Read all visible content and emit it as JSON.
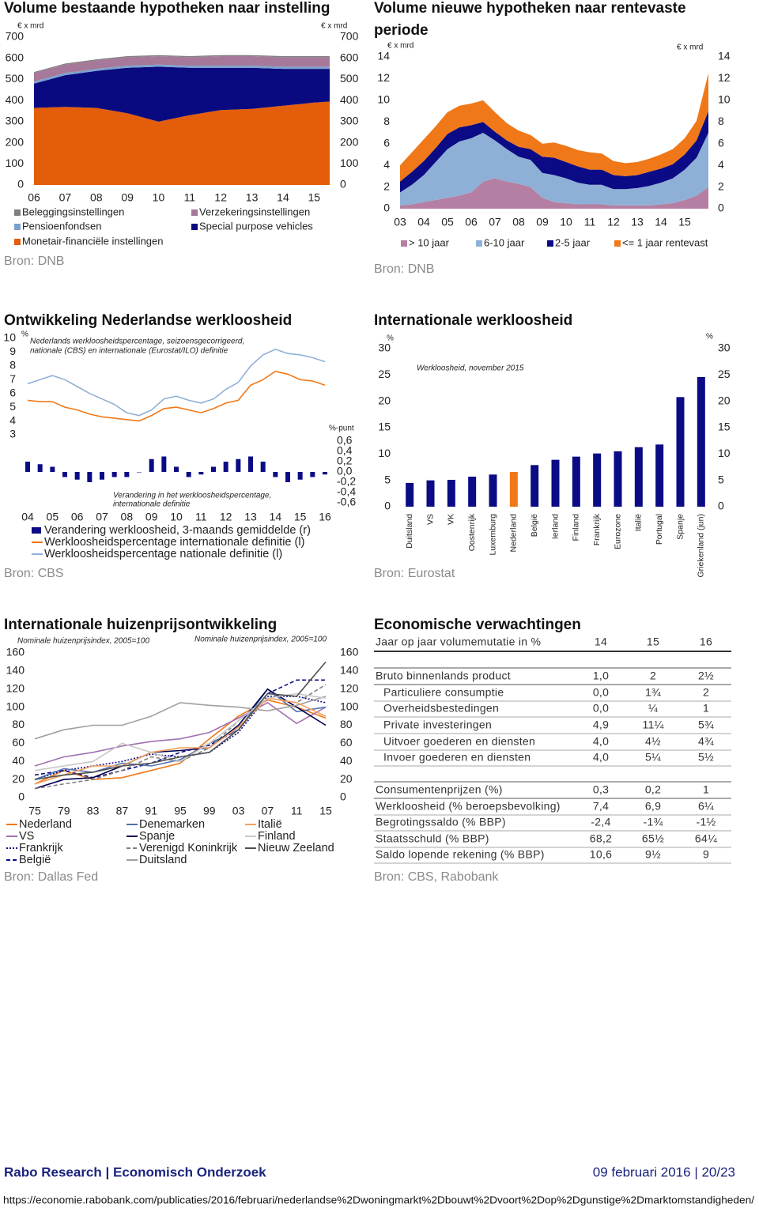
{
  "chart_data": [
    {
      "type": "area",
      "title": "Volume bestaande hypotheken naar instelling",
      "source": "Bron: DNB",
      "ylabel": "€ x mrd",
      "y2label": "€ x mrd",
      "x": [
        2006,
        2007,
        2008,
        2009,
        2010,
        2011,
        2012,
        2013,
        2014,
        2015,
        2015.5
      ],
      "xlim": [
        2006,
        2015.5
      ],
      "xticks": [
        {
          "value": 2006,
          "label": "06"
        },
        {
          "value": 2007,
          "label": "07"
        },
        {
          "value": 2008,
          "label": "08"
        },
        {
          "value": 2009,
          "label": "09"
        },
        {
          "value": 2010,
          "label": "10"
        },
        {
          "value": 2011,
          "label": "11"
        },
        {
          "value": 2012,
          "label": "12"
        },
        {
          "value": 2013,
          "label": "13"
        },
        {
          "value": 2014,
          "label": "14"
        },
        {
          "value": 2015,
          "label": "15"
        }
      ],
      "ylim": [
        0,
        700
      ],
      "yticks": [
        0,
        100,
        200,
        300,
        400,
        500,
        600,
        700
      ],
      "y2lim": [
        0,
        700
      ],
      "y2ticks": [
        0,
        100,
        200,
        300,
        400,
        500,
        600,
        700
      ],
      "series": [
        {
          "name": "Monetair-financiële instellingen",
          "color": "#e35d0b",
          "values": [
            365,
            370,
            365,
            340,
            300,
            330,
            355,
            360,
            375,
            390,
            395
          ]
        },
        {
          "name": "Special purpose vehicles",
          "color": "#0a0a80",
          "values": [
            115,
            150,
            175,
            215,
            260,
            225,
            200,
            195,
            175,
            160,
            155
          ]
        },
        {
          "name": "Pensioenfondsen",
          "color": "#7ba2cf",
          "values": [
            10,
            10,
            10,
            10,
            10,
            10,
            10,
            10,
            10,
            10,
            10
          ]
        },
        {
          "name": "Verzekeringsinstellingen",
          "color": "#a6789a",
          "values": [
            40,
            40,
            40,
            40,
            40,
            40,
            45,
            45,
            45,
            45,
            45
          ]
        },
        {
          "name": "Beleggingsinstellingen",
          "color": "#808080",
          "values": [
            5,
            5,
            5,
            5,
            5,
            5,
            5,
            5,
            5,
            5,
            5
          ]
        }
      ]
    },
    {
      "type": "area",
      "title": "Volume nieuwe hypotheken naar rentevaste periode",
      "source": "Bron: DNB",
      "ylabel": "€ x mrd",
      "y2label": "€ x mrd",
      "x": [
        2003,
        2003.5,
        2004,
        2004.5,
        2005,
        2005.5,
        2006,
        2006.5,
        2007,
        2007.5,
        2008,
        2008.5,
        2009,
        2009.5,
        2010,
        2010.5,
        2011,
        2011.5,
        2012,
        2012.5,
        2013,
        2013.5,
        2014,
        2014.5,
        2015,
        2015.5,
        2016
      ],
      "xlim": [
        2002.9,
        2016
      ],
      "xticks": [
        {
          "value": 2003,
          "label": "03"
        },
        {
          "value": 2004,
          "label": "04"
        },
        {
          "value": 2005,
          "label": "05"
        },
        {
          "value": 2006,
          "label": "06"
        },
        {
          "value": 2007,
          "label": "07"
        },
        {
          "value": 2008,
          "label": "08"
        },
        {
          "value": 2009,
          "label": "09"
        },
        {
          "value": 2010,
          "label": "10"
        },
        {
          "value": 2011,
          "label": "11"
        },
        {
          "value": 2012,
          "label": "12"
        },
        {
          "value": 2013,
          "label": "13"
        },
        {
          "value": 2014,
          "label": "14"
        },
        {
          "value": 2015,
          "label": "15"
        }
      ],
      "ylim": [
        0,
        14
      ],
      "yticks": [
        0,
        2,
        4,
        6,
        8,
        10,
        12,
        14
      ],
      "y2lim": [
        0,
        14
      ],
      "y2ticks": [
        0,
        2,
        4,
        6,
        8,
        10,
        12,
        14
      ],
      "series": [
        {
          "name": "> 10 jaar",
          "color": "#b57fa3",
          "values": [
            0.3,
            0.4,
            0.6,
            0.8,
            1.0,
            1.2,
            1.5,
            2.5,
            2.8,
            2.5,
            2.3,
            2.0,
            1.0,
            0.6,
            0.5,
            0.4,
            0.4,
            0.4,
            0.3,
            0.3,
            0.3,
            0.3,
            0.4,
            0.5,
            0.8,
            1.2,
            2.0
          ]
        },
        {
          "name": "6-10 jaar",
          "color": "#8fb0d6",
          "values": [
            1.2,
            1.8,
            2.5,
            3.5,
            4.5,
            5.0,
            5.0,
            4.5,
            3.5,
            3.0,
            2.5,
            2.5,
            2.3,
            2.5,
            2.3,
            2.0,
            1.8,
            1.8,
            1.5,
            1.5,
            1.6,
            1.8,
            2.0,
            2.3,
            2.8,
            3.5,
            5.0
          ]
        },
        {
          "name": "2-5 jaar",
          "color": "#0b0b85",
          "values": [
            1.0,
            1.2,
            1.3,
            1.3,
            1.4,
            1.3,
            1.2,
            1.0,
            0.8,
            0.8,
            0.9,
            1.0,
            1.5,
            1.6,
            1.5,
            1.5,
            1.4,
            1.4,
            1.3,
            1.2,
            1.2,
            1.3,
            1.3,
            1.3,
            1.4,
            1.6,
            2.0
          ]
        },
        {
          "name": "<= 1 jaar rentevast",
          "color": "#f07818",
          "values": [
            1.5,
            1.8,
            2.0,
            2.0,
            2.0,
            2.0,
            2.0,
            2.0,
            1.8,
            1.6,
            1.5,
            1.3,
            1.2,
            1.4,
            1.5,
            1.5,
            1.6,
            1.5,
            1.3,
            1.2,
            1.2,
            1.2,
            1.3,
            1.4,
            1.5,
            1.8,
            3.5
          ]
        }
      ]
    },
    {
      "type": "line",
      "title": "Ontwikkeling Nederlandse werkloosheid",
      "source": "Bron: CBS",
      "ylabel": "%",
      "y2label": "%-punt",
      "annotations": [
        "Nederlands werkloosheidspercentage, seizoensgecorrigeerd,",
        "nationale (CBS) en internationale (Eurostat/ILO) definitie",
        "Verandering in het werkloosheidspercentage,",
        "internationale definitie"
      ],
      "x": [
        2004,
        2004.5,
        2005,
        2005.5,
        2006,
        2006.5,
        2007,
        2007.5,
        2008,
        2008.5,
        2009,
        2009.5,
        2010,
        2010.5,
        2011,
        2011.5,
        2012,
        2012.5,
        2013,
        2013.5,
        2014,
        2014.5,
        2015,
        2015.5,
        2016
      ],
      "xlim": [
        2004,
        2016
      ],
      "xticks": [
        {
          "value": 2004,
          "label": "04"
        },
        {
          "value": 2005,
          "label": "05"
        },
        {
          "value": 2006,
          "label": "06"
        },
        {
          "value": 2007,
          "label": "07"
        },
        {
          "value": 2008,
          "label": "08"
        },
        {
          "value": 2009,
          "label": "09"
        },
        {
          "value": 2010,
          "label": "10"
        },
        {
          "value": 2011,
          "label": "11"
        },
        {
          "value": 2012,
          "label": "12"
        },
        {
          "value": 2013,
          "label": "13"
        },
        {
          "value": 2014,
          "label": "14"
        },
        {
          "value": 2015,
          "label": "15"
        },
        {
          "value": 2016,
          "label": "16"
        }
      ],
      "ylim": [
        3,
        10
      ],
      "yticks": [
        3,
        4,
        5,
        6,
        7,
        8,
        9,
        10
      ],
      "y2lim": [
        -0.6,
        0.6
      ],
      "y2ticks": [
        {
          "value": 0.6,
          "label": "0,6"
        },
        {
          "value": 0.4,
          "label": "0,4"
        },
        {
          "value": 0.2,
          "label": "0,2"
        },
        {
          "value": 0,
          "label": "0,0"
        },
        {
          "value": -0.2,
          "label": "-0,2"
        },
        {
          "value": -0.4,
          "label": "-0,4"
        },
        {
          "value": -0.6,
          "label": "-0,6"
        }
      ],
      "series": [
        {
          "name": "Verandering werkloosheid, 3-maands gemiddelde (r)",
          "type": "bar",
          "axis": "y2",
          "color": "#0b0b85",
          "values": [
            0.2,
            0.15,
            0.1,
            -0.1,
            -0.15,
            -0.2,
            -0.15,
            -0.1,
            -0.1,
            0.0,
            0.25,
            0.3,
            0.1,
            -0.1,
            -0.05,
            0.1,
            0.2,
            0.25,
            0.3,
            0.2,
            -0.1,
            -0.2,
            -0.15,
            -0.1,
            -0.05
          ]
        },
        {
          "name": "Werkloosheidspercentage internationale definitie (l)",
          "color": "#f07818",
          "values": [
            5.5,
            5.4,
            5.4,
            5.0,
            4.8,
            4.5,
            4.3,
            4.2,
            4.1,
            4.0,
            4.4,
            4.9,
            5.0,
            4.8,
            4.6,
            4.9,
            5.3,
            5.5,
            6.6,
            7.0,
            7.6,
            7.4,
            7.0,
            6.9,
            6.6
          ]
        },
        {
          "name": "Werkloosheidspercentage nationale definitie (l)",
          "color": "#8fb0d6",
          "values": [
            6.7,
            7.0,
            7.3,
            7.0,
            6.5,
            6.0,
            5.6,
            5.2,
            4.6,
            4.4,
            4.8,
            5.6,
            5.8,
            5.5,
            5.3,
            5.6,
            6.3,
            6.8,
            8.0,
            8.8,
            9.2,
            8.9,
            8.8,
            8.6,
            8.3
          ]
        }
      ]
    },
    {
      "type": "bar",
      "title": "Internationale werkloosheid",
      "source": "Bron: Eurostat",
      "ylabel": "%",
      "y2label": "%",
      "annotations": [
        "Werkloosheid, november 2015"
      ],
      "categories": [
        "Duitsland",
        "VS",
        "VK",
        "Oostenrijk",
        "Luxemburg",
        "Nederland",
        "België",
        "Ierland",
        "Finland",
        "Frankrijk",
        "Eurozone",
        "Italië",
        "Portugal",
        "Spanje",
        "Griekenland (jun)"
      ],
      "values": [
        4.5,
        5.0,
        5.1,
        5.7,
        6.1,
        6.6,
        7.9,
        8.9,
        9.5,
        10.1,
        10.5,
        11.3,
        11.8,
        20.8,
        24.6
      ],
      "colors": [
        "#0b0b85",
        "#0b0b85",
        "#0b0b85",
        "#0b0b85",
        "#0b0b85",
        "#f07818",
        "#0b0b85",
        "#0b0b85",
        "#0b0b85",
        "#0b0b85",
        "#0b0b85",
        "#0b0b85",
        "#0b0b85",
        "#0b0b85",
        "#0b0b85"
      ],
      "ylim": [
        0,
        30
      ],
      "yticks": [
        0,
        5,
        10,
        15,
        20,
        25,
        30
      ],
      "y2lim": [
        0,
        30
      ],
      "y2ticks": [
        0,
        5,
        10,
        15,
        20,
        25,
        30
      ]
    },
    {
      "type": "line",
      "title": "Internationale huizenprijsontwikkeling",
      "source": "Bron: Dallas Fed",
      "annotations": [
        "Nominale huizenprijsindex, 2005=100",
        "Nominale huizenprijsindex, 2005=100"
      ],
      "x": [
        1975,
        1979,
        1983,
        1987,
        1991,
        1995,
        1999,
        2003,
        2007,
        2011,
        2015
      ],
      "xlim": [
        1975,
        2015
      ],
      "xticks": [
        {
          "value": 1975,
          "label": "75"
        },
        {
          "value": 1979,
          "label": "79"
        },
        {
          "value": 1983,
          "label": "83"
        },
        {
          "value": 1987,
          "label": "87"
        },
        {
          "value": 1991,
          "label": "91"
        },
        {
          "value": 1995,
          "label": "95"
        },
        {
          "value": 1999,
          "label": "99"
        },
        {
          "value": 2003,
          "label": "03"
        },
        {
          "value": 2007,
          "label": "07"
        },
        {
          "value": 2011,
          "label": "11"
        },
        {
          "value": 2015,
          "label": "15"
        }
      ],
      "ylim": [
        0,
        160
      ],
      "yticks": [
        0,
        20,
        40,
        60,
        80,
        100,
        120,
        140,
        160
      ],
      "y2lim": [
        0,
        160
      ],
      "y2ticks": [
        0,
        20,
        40,
        60,
        80,
        100,
        120,
        140,
        160
      ],
      "series": [
        {
          "name": "Nederland",
          "color": "#f07818",
          "dash": "solid",
          "values": [
            15,
            30,
            20,
            22,
            30,
            38,
            65,
            90,
            108,
            100,
            88
          ]
        },
        {
          "name": "VS",
          "color": "#a070b0",
          "dash": "solid",
          "values": [
            35,
            45,
            50,
            57,
            62,
            65,
            72,
            88,
            105,
            82,
            100
          ]
        },
        {
          "name": "Frankrijk",
          "color": "#0b0b85",
          "dash": "dotted",
          "values": [
            20,
            30,
            35,
            40,
            48,
            45,
            50,
            72,
            112,
            112,
            105
          ]
        },
        {
          "name": "België",
          "color": "#0b0b85",
          "dash": "dashed",
          "values": [
            25,
            30,
            22,
            30,
            38,
            50,
            58,
            75,
            115,
            130,
            130
          ]
        },
        {
          "name": "Denemarken",
          "color": "#5070b0",
          "dash": "solid",
          "values": [
            20,
            32,
            28,
            38,
            35,
            42,
            60,
            75,
            120,
            95,
            100
          ]
        },
        {
          "name": "Spanje",
          "color": "#000050",
          "dash": "solid",
          "values": [
            10,
            20,
            22,
            35,
            50,
            52,
            55,
            80,
            120,
            100,
            80
          ]
        },
        {
          "name": "Verenigd Koninkrijk",
          "color": "#808080",
          "dash": "dashed",
          "values": [
            10,
            15,
            20,
            30,
            45,
            40,
            55,
            85,
            110,
            105,
            125
          ]
        },
        {
          "name": "Duitsland",
          "color": "#a0a0a0",
          "dash": "solid",
          "values": [
            65,
            75,
            80,
            80,
            90,
            105,
            102,
            100,
            96,
            102,
            112
          ]
        },
        {
          "name": "Italië",
          "color": "#f5a060",
          "dash": "solid",
          "values": [
            15,
            25,
            35,
            35,
            50,
            55,
            55,
            78,
            110,
            105,
            90
          ]
        },
        {
          "name": "Finland",
          "color": "#c8c8c8",
          "dash": "solid",
          "values": [
            30,
            35,
            40,
            60,
            50,
            40,
            60,
            85,
            110,
            115,
            110
          ]
        },
        {
          "name": "Nieuw Zeeland",
          "color": "#505050",
          "dash": "solid",
          "values": [
            20,
            25,
            28,
            35,
            38,
            45,
            50,
            75,
            115,
            112,
            150
          ]
        }
      ]
    }
  ],
  "table": {
    "title": "Economische verwachtingen",
    "source": "Bron: CBS, Rabobank",
    "header": [
      "Jaar op jaar volumemutatie in %",
      "14",
      "15",
      "16"
    ],
    "rows": [
      [
        "Bruto binnenlands product",
        "1,0",
        "2",
        "2½"
      ],
      [
        "Particuliere consumptie",
        "0,0",
        "1¾",
        "2"
      ],
      [
        "Overheidsbestedingen",
        "0,0",
        "¼",
        "1"
      ],
      [
        "Private investeringen",
        "4,9",
        "11¼",
        "5¾"
      ],
      [
        "Uitvoer goederen en diensten",
        "4,0",
        "4½",
        "4¾"
      ],
      [
        "Invoer goederen en diensten",
        "4,0",
        "5¼",
        "5½"
      ],
      [
        "Consumentenprijzen (%)",
        "0,3",
        "0,2",
        "1"
      ],
      [
        "Werkloosheid (% beroepsbevolking)",
        "7,4",
        "6,9",
        "6¼"
      ],
      [
        "Begrotingssaldo (% BBP)",
        "-2,4",
        "-1¾",
        "-1½"
      ],
      [
        "Staatsschuld (% BBP)",
        "68,2",
        "65½",
        "64¼"
      ],
      [
        "Saldo lopende rekening (% BBP)",
        "10,6",
        "9½",
        "9"
      ]
    ]
  },
  "footer": {
    "left": "Rabo Research | Economisch Onderzoek",
    "right": "09 februari 2016 | 20/23",
    "url": "https://economie.rabobank.com/publicaties/2016/februari/nederlandse%2Dwoningmarkt%2Dbouwt%2Dvoort%2Dop%2Dgunstige%2Dmarktomstandigheden/"
  }
}
